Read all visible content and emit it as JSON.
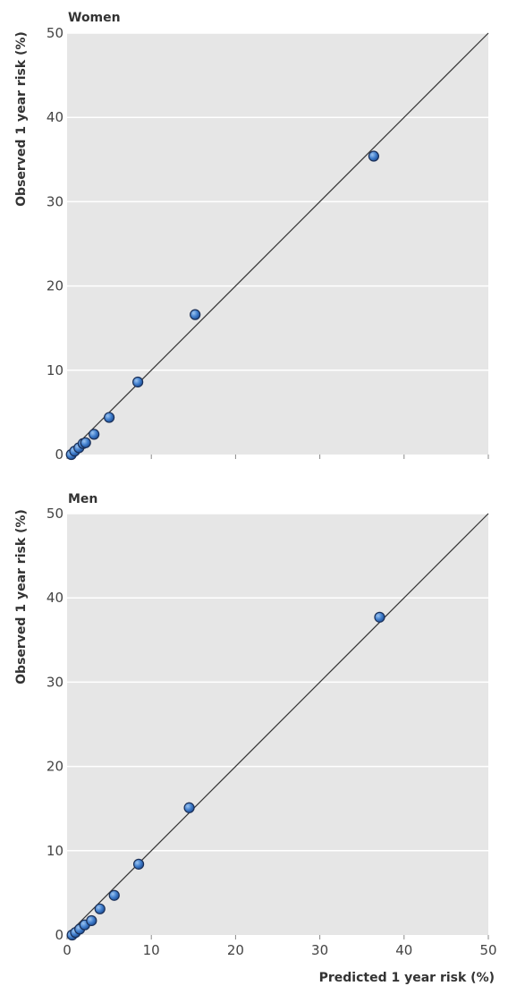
{
  "chart_data": [
    {
      "type": "scatter",
      "title": "Women",
      "xlabel": "",
      "ylabel": "Observed 1 year risk (%)",
      "xlim": [
        0,
        50
      ],
      "ylim": [
        0,
        50
      ],
      "xticks": [],
      "yticks": [
        "0",
        "10",
        "20",
        "30",
        "40",
        "50"
      ],
      "grid": true,
      "reference_line": "y = x",
      "points": [
        {
          "x": 0.5,
          "y": 0.0
        },
        {
          "x": 0.9,
          "y": 0.4
        },
        {
          "x": 1.4,
          "y": 0.8
        },
        {
          "x": 1.9,
          "y": 1.3
        },
        {
          "x": 2.2,
          "y": 1.4
        },
        {
          "x": 3.2,
          "y": 2.4
        },
        {
          "x": 5.0,
          "y": 4.4
        },
        {
          "x": 8.4,
          "y": 8.6
        },
        {
          "x": 15.2,
          "y": 16.6
        },
        {
          "x": 36.4,
          "y": 35.4
        }
      ]
    },
    {
      "type": "scatter",
      "title": "Men",
      "xlabel": "Predicted 1 year risk (%)",
      "ylabel": "Observed 1 year risk (%)",
      "xlim": [
        0,
        50
      ],
      "ylim": [
        0,
        50
      ],
      "xticks": [
        "0",
        "10",
        "20",
        "30",
        "40",
        "50"
      ],
      "yticks": [
        "0",
        "10",
        "20",
        "30",
        "40",
        "50"
      ],
      "grid": true,
      "reference_line": "y = x",
      "points": [
        {
          "x": 0.6,
          "y": 0.0
        },
        {
          "x": 1.0,
          "y": 0.3
        },
        {
          "x": 1.5,
          "y": 0.7
        },
        {
          "x": 2.1,
          "y": 1.2
        },
        {
          "x": 2.9,
          "y": 1.7
        },
        {
          "x": 3.9,
          "y": 3.1
        },
        {
          "x": 5.6,
          "y": 4.7
        },
        {
          "x": 8.5,
          "y": 8.4
        },
        {
          "x": 14.5,
          "y": 15.1
        },
        {
          "x": 37.1,
          "y": 37.7
        }
      ]
    }
  ]
}
